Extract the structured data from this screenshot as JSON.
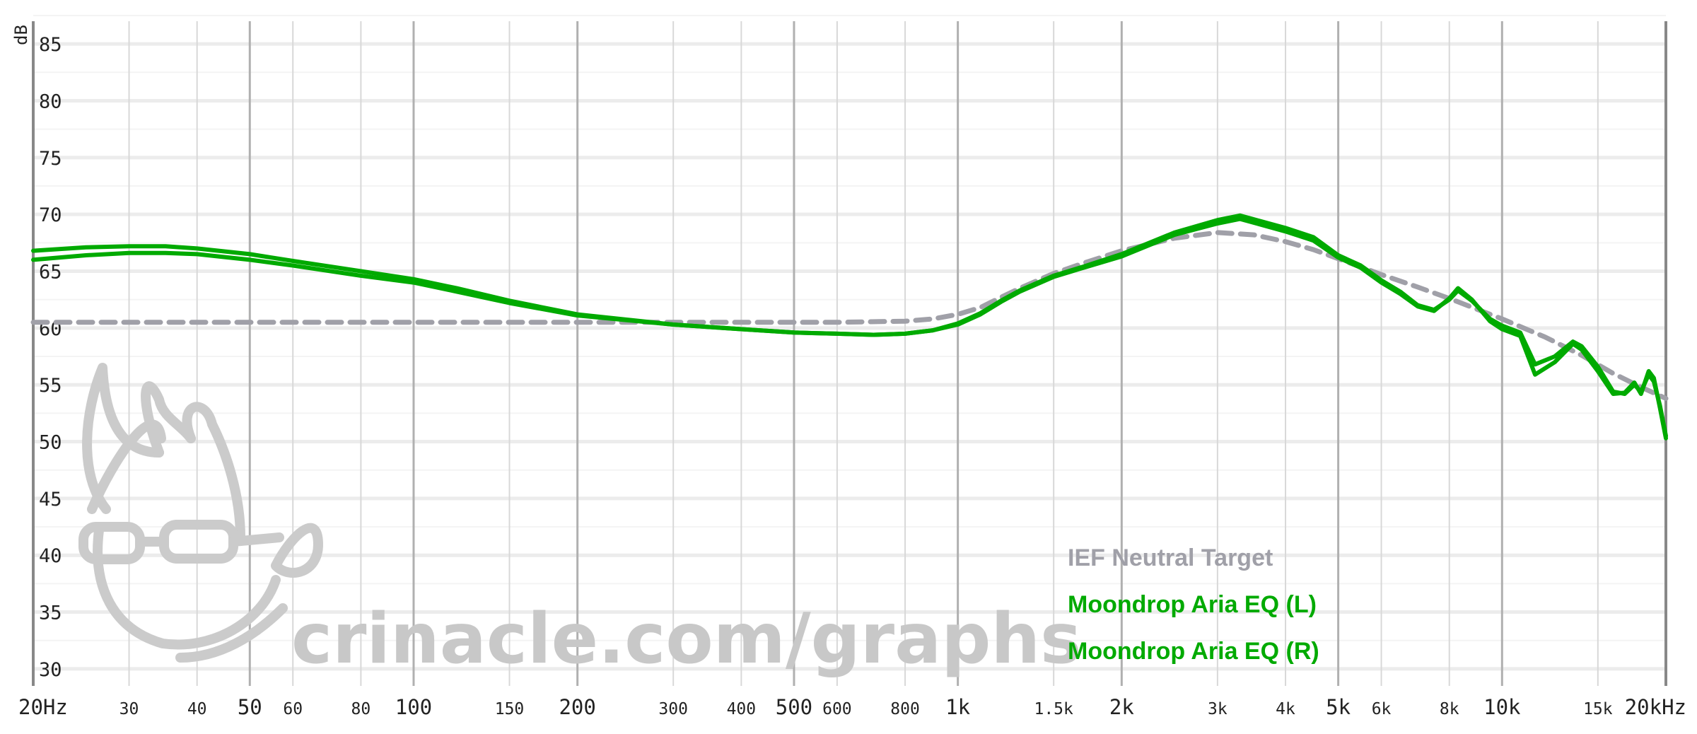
{
  "chart_data": {
    "type": "line",
    "title": "",
    "ylabel": "dB",
    "xscale": "log",
    "xlim": [
      20,
      20000
    ],
    "ylim": [
      28.5,
      87
    ],
    "grid": true,
    "legend_position": "bottom-right",
    "y_ticks": [
      "30",
      "35",
      "40",
      "45",
      "50",
      "55",
      "60",
      "65",
      "70",
      "75",
      "80",
      "85"
    ],
    "x_ticks": [
      {
        "v": 20,
        "label": "20Hz",
        "big": true
      },
      {
        "v": 30,
        "label": "30",
        "big": false
      },
      {
        "v": 40,
        "label": "40",
        "big": false
      },
      {
        "v": 50,
        "label": "50",
        "big": true
      },
      {
        "v": 60,
        "label": "60",
        "big": false
      },
      {
        "v": 80,
        "label": "80",
        "big": false
      },
      {
        "v": 100,
        "label": "100",
        "big": true
      },
      {
        "v": 150,
        "label": "150",
        "big": false
      },
      {
        "v": 200,
        "label": "200",
        "big": true
      },
      {
        "v": 300,
        "label": "300",
        "big": false
      },
      {
        "v": 400,
        "label": "400",
        "big": false
      },
      {
        "v": 500,
        "label": "500",
        "big": true
      },
      {
        "v": 600,
        "label": "600",
        "big": false
      },
      {
        "v": 800,
        "label": "800",
        "big": false
      },
      {
        "v": 1000,
        "label": "1k",
        "big": true
      },
      {
        "v": 1500,
        "label": "1.5k",
        "big": false
      },
      {
        "v": 2000,
        "label": "2k",
        "big": true
      },
      {
        "v": 3000,
        "label": "3k",
        "big": false
      },
      {
        "v": 4000,
        "label": "4k",
        "big": false
      },
      {
        "v": 5000,
        "label": "5k",
        "big": true
      },
      {
        "v": 6000,
        "label": "6k",
        "big": false
      },
      {
        "v": 8000,
        "label": "8k",
        "big": false
      },
      {
        "v": 10000,
        "label": "10k",
        "big": true
      },
      {
        "v": 15000,
        "label": "15k",
        "big": false
      },
      {
        "v": 20000,
        "label": "20kHz",
        "big": true
      }
    ],
    "series": [
      {
        "name": "IEF Neutral Target",
        "color": "#a0a0a8",
        "dashed": true,
        "points": [
          [
            20,
            60.5
          ],
          [
            100,
            60.5
          ],
          [
            300,
            60.5
          ],
          [
            600,
            60.5
          ],
          [
            800,
            60.6
          ],
          [
            900,
            60.8
          ],
          [
            1000,
            61.2
          ],
          [
            1100,
            61.8
          ],
          [
            1200,
            62.7
          ],
          [
            1300,
            63.5
          ],
          [
            1500,
            64.8
          ],
          [
            1700,
            65.7
          ],
          [
            2000,
            66.8
          ],
          [
            2500,
            67.9
          ],
          [
            3000,
            68.4
          ],
          [
            3500,
            68.2
          ],
          [
            4000,
            67.6
          ],
          [
            4500,
            66.9
          ],
          [
            5000,
            66.1
          ],
          [
            6000,
            64.7
          ],
          [
            7000,
            63.6
          ],
          [
            8000,
            62.6
          ],
          [
            10000,
            60.8
          ],
          [
            12000,
            59.2
          ],
          [
            14000,
            57.6
          ],
          [
            16000,
            56.0
          ],
          [
            18000,
            54.8
          ],
          [
            20000,
            53.8
          ]
        ]
      },
      {
        "name": "Moondrop Aria EQ (L)",
        "color": "#00aa00",
        "dashed": false,
        "points": [
          [
            20,
            66.8
          ],
          [
            25,
            67.1
          ],
          [
            30,
            67.2
          ],
          [
            35,
            67.2
          ],
          [
            40,
            67.0
          ],
          [
            50,
            66.5
          ],
          [
            60,
            65.9
          ],
          [
            80,
            65.0
          ],
          [
            100,
            64.3
          ],
          [
            120,
            63.5
          ],
          [
            150,
            62.4
          ],
          [
            200,
            61.2
          ],
          [
            300,
            60.3
          ],
          [
            400,
            59.9
          ],
          [
            500,
            59.6
          ],
          [
            600,
            59.5
          ],
          [
            700,
            59.4
          ],
          [
            800,
            59.5
          ],
          [
            900,
            59.8
          ],
          [
            1000,
            60.4
          ],
          [
            1100,
            61.3
          ],
          [
            1200,
            62.4
          ],
          [
            1300,
            63.3
          ],
          [
            1500,
            64.6
          ],
          [
            1700,
            65.4
          ],
          [
            2000,
            66.5
          ],
          [
            2500,
            68.4
          ],
          [
            3000,
            69.5
          ],
          [
            3300,
            69.9
          ],
          [
            3600,
            69.4
          ],
          [
            4000,
            68.8
          ],
          [
            4500,
            68.0
          ],
          [
            5000,
            66.4
          ],
          [
            5500,
            65.5
          ],
          [
            6000,
            64.2
          ],
          [
            6500,
            63.2
          ],
          [
            7000,
            62.0
          ],
          [
            7500,
            61.6
          ],
          [
            8000,
            62.5
          ],
          [
            8300,
            63.3
          ],
          [
            8800,
            62.4
          ],
          [
            9500,
            60.8
          ],
          [
            10000,
            60.2
          ],
          [
            10800,
            59.6
          ],
          [
            11500,
            56.8
          ],
          [
            12500,
            57.5
          ],
          [
            13500,
            58.8
          ],
          [
            14000,
            58.4
          ],
          [
            15000,
            56.6
          ],
          [
            16000,
            54.4
          ],
          [
            16800,
            54.2
          ],
          [
            17500,
            55.0
          ],
          [
            18000,
            54.4
          ],
          [
            18600,
            55.9
          ],
          [
            19000,
            55.3
          ],
          [
            19500,
            53.2
          ],
          [
            20000,
            50.5
          ]
        ]
      },
      {
        "name": "Moondrop Aria EQ (R)",
        "color": "#00aa00",
        "dashed": false,
        "points": [
          [
            20,
            66.0
          ],
          [
            25,
            66.4
          ],
          [
            30,
            66.6
          ],
          [
            35,
            66.6
          ],
          [
            40,
            66.5
          ],
          [
            50,
            66.0
          ],
          [
            60,
            65.5
          ],
          [
            80,
            64.6
          ],
          [
            100,
            64.0
          ],
          [
            120,
            63.2
          ],
          [
            150,
            62.2
          ],
          [
            200,
            61.1
          ],
          [
            300,
            60.3
          ],
          [
            400,
            59.9
          ],
          [
            500,
            59.6
          ],
          [
            600,
            59.5
          ],
          [
            700,
            59.4
          ],
          [
            800,
            59.5
          ],
          [
            900,
            59.8
          ],
          [
            1000,
            60.3
          ],
          [
            1100,
            61.2
          ],
          [
            1200,
            62.3
          ],
          [
            1300,
            63.2
          ],
          [
            1500,
            64.5
          ],
          [
            1700,
            65.3
          ],
          [
            2000,
            66.3
          ],
          [
            2500,
            68.2
          ],
          [
            3000,
            69.2
          ],
          [
            3300,
            69.6
          ],
          [
            3600,
            69.1
          ],
          [
            4000,
            68.5
          ],
          [
            4500,
            67.7
          ],
          [
            5000,
            66.2
          ],
          [
            5500,
            65.3
          ],
          [
            6000,
            64.0
          ],
          [
            6500,
            63.0
          ],
          [
            7000,
            61.9
          ],
          [
            7500,
            61.5
          ],
          [
            8000,
            62.6
          ],
          [
            8300,
            63.5
          ],
          [
            8800,
            62.5
          ],
          [
            9500,
            60.6
          ],
          [
            10000,
            59.9
          ],
          [
            10800,
            59.3
          ],
          [
            11500,
            55.9
          ],
          [
            12500,
            57.0
          ],
          [
            13500,
            58.6
          ],
          [
            14000,
            58.1
          ],
          [
            15000,
            56.2
          ],
          [
            16000,
            54.2
          ],
          [
            16800,
            54.3
          ],
          [
            17500,
            55.2
          ],
          [
            18000,
            54.2
          ],
          [
            18600,
            56.2
          ],
          [
            19000,
            55.6
          ],
          [
            19500,
            53.0
          ],
          [
            20000,
            50.3
          ]
        ]
      }
    ]
  },
  "watermark": {
    "text": "crinacle.com/graphs",
    "logo_icon": "mascot-logo-icon"
  }
}
